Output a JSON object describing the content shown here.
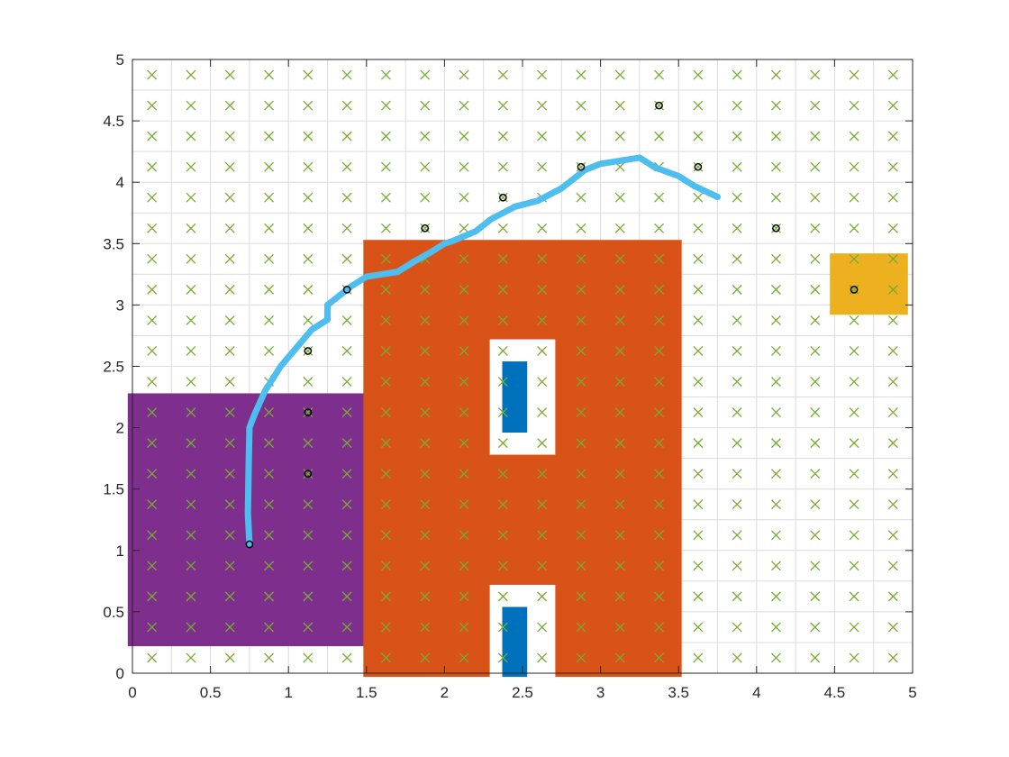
{
  "chart_data": {
    "type": "scatter",
    "title": "",
    "xlabel": "",
    "ylabel": "",
    "xlim": [
      0,
      5
    ],
    "ylim": [
      0,
      5
    ],
    "x_ticks": [
      "0",
      "0.5",
      "1",
      "1.5",
      "2",
      "2.5",
      "3",
      "3.5",
      "4",
      "4.5",
      "5"
    ],
    "y_ticks": [
      "0",
      "0.5",
      "1",
      "1.5",
      "2",
      "2.5",
      "3",
      "3.5",
      "4",
      "4.5",
      "5"
    ],
    "grid": true,
    "grid_spacing": 0.25,
    "regions": [
      {
        "shape": "rect",
        "x": [
          -0.03,
          1.53
        ],
        "y": [
          0.22,
          2.28
        ],
        "color": "#7e2f8e"
      },
      {
        "shape": "rect",
        "x": [
          1.48,
          3.52
        ],
        "y": [
          -0.03,
          3.53
        ],
        "color": "#d95319"
      },
      {
        "shape": "rect",
        "x": [
          2.29,
          2.71
        ],
        "y": [
          1.78,
          2.72
        ],
        "color": "#ffffff"
      },
      {
        "shape": "rect",
        "x": [
          2.29,
          2.71
        ],
        "y": [
          -0.03,
          0.72
        ],
        "color": "#ffffff"
      },
      {
        "shape": "rect",
        "x": [
          2.37,
          2.53
        ],
        "y": [
          1.96,
          2.54
        ],
        "color": "#0072bd"
      },
      {
        "shape": "rect",
        "x": [
          2.37,
          2.53
        ],
        "y": [
          -0.03,
          0.54
        ],
        "color": "#0072bd"
      },
      {
        "shape": "rect",
        "x": [
          4.47,
          4.97
        ],
        "y": [
          2.92,
          3.42
        ],
        "color": "#edb120"
      }
    ],
    "series": [
      {
        "marker": "x",
        "color": "#77ac30",
        "x_start": 0.125,
        "x_step": 0.25,
        "x_count": 20,
        "y_start": 0.125,
        "y_step": 0.25,
        "y_count": 20
      },
      {
        "marker": "o",
        "color": "#000000",
        "x": [
          0.75,
          1.125,
          1.125,
          1.125,
          1.375,
          1.875,
          2.375,
          2.875,
          3.375,
          3.625,
          4.125,
          4.625
        ],
        "y": [
          1.05,
          1.625,
          2.125,
          2.625,
          3.125,
          3.625,
          3.875,
          4.125,
          4.625,
          4.125,
          3.625,
          3.125
        ]
      },
      {
        "marker": "line",
        "color": "#4dbeee",
        "x": [
          0.75,
          0.74,
          0.745,
          0.75,
          0.78,
          0.85,
          0.95,
          1.05,
          1.15,
          1.25,
          1.25,
          1.3,
          1.4,
          1.5,
          1.7,
          1.8,
          1.9,
          2.0,
          2.05,
          2.2,
          2.3,
          2.45,
          2.6,
          2.75,
          2.85,
          2.9,
          3.0,
          3.25,
          3.35,
          3.5,
          3.6,
          3.75
        ],
        "y": [
          1.05,
          1.3,
          1.7,
          2.0,
          2.1,
          2.3,
          2.5,
          2.65,
          2.8,
          2.88,
          3.0,
          3.05,
          3.15,
          3.23,
          3.27,
          3.35,
          3.42,
          3.5,
          3.52,
          3.6,
          3.7,
          3.8,
          3.85,
          3.95,
          4.05,
          4.1,
          4.15,
          4.2,
          4.12,
          4.05,
          3.97,
          3.88
        ]
      }
    ]
  }
}
